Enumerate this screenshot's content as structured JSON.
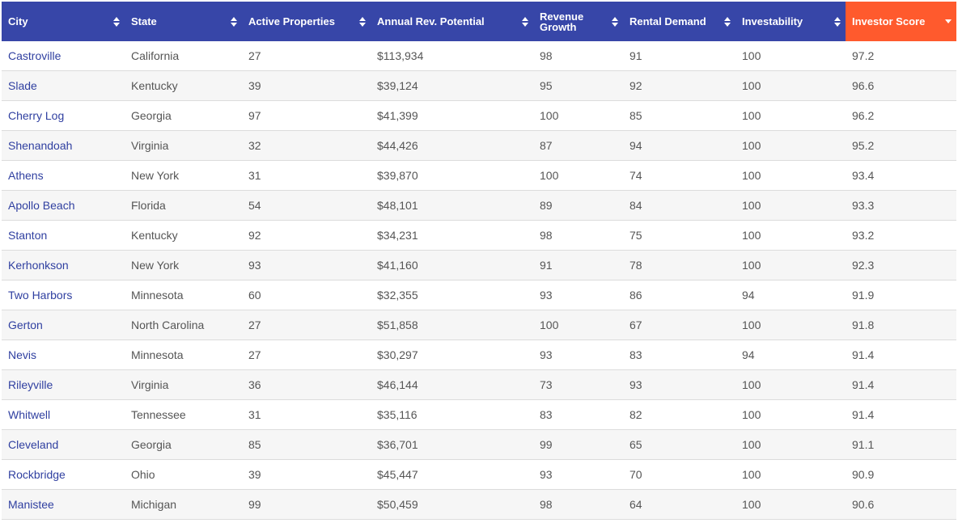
{
  "columns": [
    {
      "label": "City",
      "name": "city"
    },
    {
      "label": "State",
      "name": "state"
    },
    {
      "label": "Active Properties",
      "name": "active-properties"
    },
    {
      "label": "Annual Rev. Potential",
      "name": "annual-rev-potential"
    },
    {
      "label": "Revenue Growth",
      "name": "revenue-growth"
    },
    {
      "label": "Rental Demand",
      "name": "rental-demand"
    },
    {
      "label": "Investability",
      "name": "investability"
    },
    {
      "label": "Investor Score",
      "name": "investor-score"
    }
  ],
  "sort": {
    "column": "Investor Score",
    "direction": "descending"
  },
  "colors": {
    "header": "#3746a8",
    "active_header": "#ff5a2d",
    "link": "#2f3fa0"
  },
  "rows": [
    [
      "Castroville",
      "California",
      "27",
      "$113,934",
      "98",
      "91",
      "100",
      "97.2"
    ],
    [
      "Slade",
      "Kentucky",
      "39",
      "$39,124",
      "95",
      "92",
      "100",
      "96.6"
    ],
    [
      "Cherry Log",
      "Georgia",
      "97",
      "$41,399",
      "100",
      "85",
      "100",
      "96.2"
    ],
    [
      "Shenandoah",
      "Virginia",
      "32",
      "$44,426",
      "87",
      "94",
      "100",
      "95.2"
    ],
    [
      "Athens",
      "New York",
      "31",
      "$39,870",
      "100",
      "74",
      "100",
      "93.4"
    ],
    [
      "Apollo Beach",
      "Florida",
      "54",
      "$48,101",
      "89",
      "84",
      "100",
      "93.3"
    ],
    [
      "Stanton",
      "Kentucky",
      "92",
      "$34,231",
      "98",
      "75",
      "100",
      "93.2"
    ],
    [
      "Kerhonkson",
      "New York",
      "93",
      "$41,160",
      "91",
      "78",
      "100",
      "92.3"
    ],
    [
      "Two Harbors",
      "Minnesota",
      "60",
      "$32,355",
      "93",
      "86",
      "94",
      "91.9"
    ],
    [
      "Gerton",
      "North Carolina",
      "27",
      "$51,858",
      "100",
      "67",
      "100",
      "91.8"
    ],
    [
      "Nevis",
      "Minnesota",
      "27",
      "$30,297",
      "93",
      "83",
      "94",
      "91.4"
    ],
    [
      "Rileyville",
      "Virginia",
      "36",
      "$46,144",
      "73",
      "93",
      "100",
      "91.4"
    ],
    [
      "Whitwell",
      "Tennessee",
      "31",
      "$35,116",
      "83",
      "82",
      "100",
      "91.4"
    ],
    [
      "Cleveland",
      "Georgia",
      "85",
      "$36,701",
      "99",
      "65",
      "100",
      "91.1"
    ],
    [
      "Rockbridge",
      "Ohio",
      "39",
      "$45,447",
      "93",
      "70",
      "100",
      "90.9"
    ],
    [
      "Manistee",
      "Michigan",
      "99",
      "$50,459",
      "98",
      "64",
      "100",
      "90.6"
    ]
  ]
}
